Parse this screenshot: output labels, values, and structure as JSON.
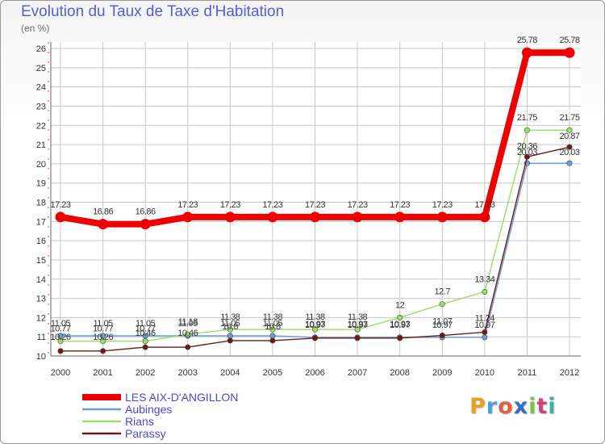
{
  "chart_data": {
    "type": "line",
    "title": "Evolution du Taux de Taxe d'Habitation",
    "ylabel": "(en %)",
    "xlabel": "",
    "categories": [
      "2000",
      "2001",
      "2002",
      "2003",
      "2004",
      "2005",
      "2006",
      "2007",
      "2008",
      "2009",
      "2010",
      "2011",
      "2012"
    ],
    "ylim": [
      10,
      26
    ],
    "yticks": [
      10,
      11,
      12,
      13,
      14,
      15,
      16,
      17,
      18,
      19,
      20,
      21,
      22,
      23,
      24,
      25,
      26
    ],
    "grid": true,
    "legend_position": "bottom-left",
    "series": [
      {
        "name": "LES AIX-D'ANGILLON",
        "color": "#ee0000",
        "values": [
          17.23,
          16.86,
          16.86,
          17.23,
          17.23,
          17.23,
          17.23,
          17.23,
          17.23,
          17.23,
          17.23,
          25.78,
          25.78
        ],
        "labels": [
          "17.23",
          "16.86",
          "16.86",
          "17.23",
          "17.23",
          "17.23",
          "17.23",
          "17.23",
          "17.23",
          "17.23",
          "17.23",
          "25.78",
          "25.78"
        ]
      },
      {
        "name": "Aubinges",
        "color": "#6a9fd0",
        "values": [
          11.05,
          11.05,
          11.05,
          11.05,
          11.05,
          11.05,
          10.97,
          10.97,
          10.97,
          10.97,
          10.97,
          20.03,
          20.03
        ],
        "labels": [
          "11.05",
          "11.05",
          "11.05",
          "11.05",
          "11.05",
          "11.05",
          "10.97",
          "10.97",
          "10.97",
          "10.97",
          "10.97",
          "20.03",
          "20.03"
        ]
      },
      {
        "name": "Rians",
        "color": "#99e066",
        "values": [
          10.77,
          10.77,
          10.77,
          11.13,
          11.38,
          11.38,
          11.38,
          11.38,
          12,
          12.7,
          13.34,
          21.75,
          21.75
        ],
        "labels": [
          "10.77",
          "10.77",
          "10.77",
          "11.13",
          "11.38",
          "11.38",
          "11.38",
          "11.38",
          "12",
          "12.7",
          "13.34",
          "21.75",
          "21.75"
        ]
      },
      {
        "name": "Parassy",
        "color": "#6b1a1a",
        "values": [
          10.26,
          10.26,
          10.46,
          10.46,
          10.8,
          10.8,
          10.93,
          10.93,
          10.93,
          11.07,
          11.24,
          20.36,
          20.87
        ],
        "labels": [
          "10.26",
          "10.26",
          "10.46",
          "10.46",
          "10.8",
          "10.8",
          "10.93",
          "10.93",
          "10.93",
          "11.07",
          "11.24",
          "20.36",
          "20.87"
        ]
      }
    ]
  },
  "logo": {
    "letters": [
      "P",
      "r",
      "o",
      "x",
      "i",
      "t",
      "i"
    ],
    "colors": [
      "#e8a020",
      "#4aa0d8",
      "#e06040",
      "#3070c0",
      "#80c040",
      "#d04080",
      "#40b0a0"
    ]
  }
}
